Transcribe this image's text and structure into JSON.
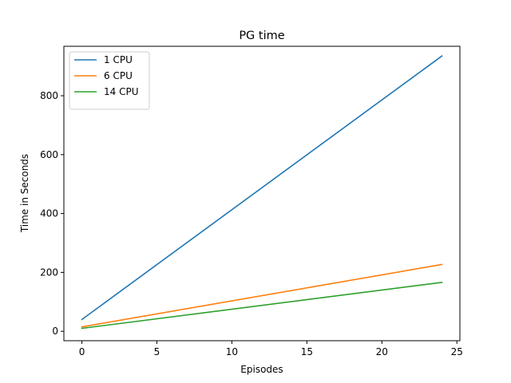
{
  "chart_data": {
    "type": "line",
    "title": "PG time",
    "xlabel": "Episodes",
    "ylabel": "Time in Seconds",
    "xlim": [
      -1.2,
      25.2
    ],
    "ylim": [
      -32,
      968
    ],
    "xticks": [
      0,
      5,
      10,
      15,
      20,
      25
    ],
    "yticks": [
      0,
      200,
      400,
      600,
      800
    ],
    "legend_position": "upper-left",
    "grid": false,
    "series": [
      {
        "name": "1 CPU",
        "color": "#1f77b4",
        "x": [
          0,
          24
        ],
        "y": [
          40,
          935
        ]
      },
      {
        "name": "6 CPU",
        "color": "#ff7f0e",
        "x": [
          0,
          24
        ],
        "y": [
          15,
          227
        ]
      },
      {
        "name": "14 CPU",
        "color": "#2ca02c",
        "x": [
          0,
          24
        ],
        "y": [
          10,
          166
        ]
      }
    ]
  }
}
